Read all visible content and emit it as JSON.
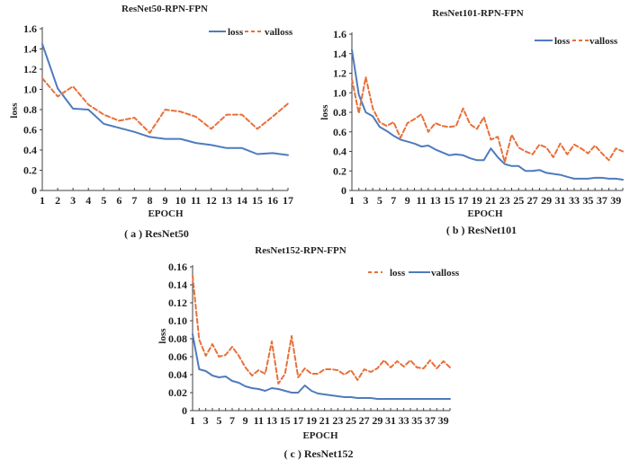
{
  "colors": {
    "blue": "#4f7bbd",
    "orange": "#e8703a",
    "text": "#231f20"
  },
  "chart_data": [
    {
      "id": "a",
      "type": "line",
      "title": "ResNet50-RPN-FPN",
      "caption": "( a ) ResNet50",
      "xlabel": "EPOCH",
      "ylabel": "loss",
      "xlim": [
        1,
        17
      ],
      "ylim": [
        0,
        1.6
      ],
      "yticks": [
        0,
        0.2,
        0.4,
        0.6,
        0.8,
        1.0,
        1.2,
        1.4,
        1.6
      ],
      "ytick_labels": [
        "0",
        "0.2",
        "0.4",
        "0.6",
        "0.8",
        "1.0",
        "1.2",
        "1.4",
        "1.6"
      ],
      "xticks": [
        1,
        2,
        3,
        4,
        5,
        6,
        7,
        8,
        9,
        10,
        11,
        12,
        13,
        14,
        15,
        16,
        17
      ],
      "xtick_labels": [
        "1",
        "2",
        "3",
        "4",
        "5",
        "6",
        "7",
        "8",
        "9",
        "10",
        "11",
        "12",
        "13",
        "14",
        "15",
        "16",
        "17"
      ],
      "legend_position": "top-right",
      "x": [
        1,
        2,
        3,
        4,
        5,
        6,
        7,
        8,
        9,
        10,
        11,
        12,
        13,
        14,
        15,
        16,
        17
      ],
      "series": [
        {
          "name": "loss",
          "style": "solid",
          "color": "#4f7bbd",
          "values": [
            1.45,
            1.01,
            0.81,
            0.8,
            0.66,
            0.62,
            0.58,
            0.53,
            0.51,
            0.51,
            0.47,
            0.45,
            0.42,
            0.42,
            0.36,
            0.37,
            0.35
          ]
        },
        {
          "name": "valloss",
          "style": "dashed",
          "color": "#e8703a",
          "values": [
            1.11,
            0.93,
            1.03,
            0.85,
            0.75,
            0.69,
            0.72,
            0.57,
            0.8,
            0.78,
            0.73,
            0.61,
            0.75,
            0.75,
            0.61,
            0.73,
            0.86
          ]
        }
      ]
    },
    {
      "id": "b",
      "type": "line",
      "title": "ResNet101-RPN-FPN",
      "caption": "( b ) ResNet101",
      "xlabel": "EPOCH",
      "ylabel": "loss",
      "xlim": [
        1,
        40
      ],
      "ylim": [
        0,
        1.6
      ],
      "yticks": [
        0,
        0.2,
        0.4,
        0.6,
        0.8,
        1.0,
        1.2,
        1.4,
        1.6
      ],
      "ytick_labels": [
        "0",
        "0.2",
        "0.4",
        "0.6",
        "0.8",
        "1.0",
        "1.2",
        "1.4",
        "1.6"
      ],
      "xticks": [
        1,
        3,
        5,
        7,
        9,
        11,
        13,
        15,
        17,
        19,
        21,
        23,
        25,
        27,
        29,
        31,
        33,
        35,
        37,
        39
      ],
      "xtick_labels": [
        "1",
        "3",
        "5",
        "7",
        "9",
        "11",
        "13",
        "15",
        "17",
        "19",
        "21",
        "23",
        "25",
        "27",
        "29",
        "31",
        "33",
        "35",
        "37",
        "39"
      ],
      "legend_position": "top-right",
      "x": [
        1,
        2,
        3,
        4,
        5,
        6,
        7,
        8,
        9,
        10,
        11,
        12,
        13,
        14,
        15,
        16,
        17,
        18,
        19,
        20,
        21,
        22,
        23,
        24,
        25,
        26,
        27,
        28,
        29,
        30,
        31,
        32,
        33,
        34,
        35,
        36,
        37,
        38,
        39,
        40
      ],
      "series": [
        {
          "name": "loss",
          "style": "solid",
          "color": "#4f7bbd",
          "values": [
            1.44,
            0.98,
            0.8,
            0.76,
            0.65,
            0.61,
            0.56,
            0.52,
            0.5,
            0.48,
            0.45,
            0.46,
            0.42,
            0.39,
            0.36,
            0.37,
            0.36,
            0.33,
            0.31,
            0.31,
            0.43,
            0.34,
            0.27,
            0.25,
            0.25,
            0.2,
            0.2,
            0.21,
            0.18,
            0.17,
            0.16,
            0.14,
            0.12,
            0.12,
            0.12,
            0.13,
            0.13,
            0.12,
            0.12,
            0.11
          ]
        },
        {
          "name": "valloss",
          "style": "dashed",
          "color": "#e8703a",
          "values": [
            1.14,
            0.79,
            1.16,
            0.84,
            0.7,
            0.66,
            0.7,
            0.54,
            0.69,
            0.73,
            0.78,
            0.6,
            0.69,
            0.66,
            0.65,
            0.66,
            0.84,
            0.68,
            0.63,
            0.75,
            0.52,
            0.55,
            0.29,
            0.57,
            0.44,
            0.4,
            0.37,
            0.47,
            0.44,
            0.34,
            0.48,
            0.37,
            0.47,
            0.43,
            0.38,
            0.46,
            0.38,
            0.31,
            0.43,
            0.4
          ]
        }
      ]
    },
    {
      "id": "c",
      "type": "line",
      "title": "ResNet152-RPN-FPN",
      "caption": "( c ) ResNet152",
      "xlabel": "EPOCH",
      "ylabel": "loss",
      "xlim": [
        1,
        40
      ],
      "ylim": [
        0,
        0.16
      ],
      "yticks": [
        0,
        0.02,
        0.04,
        0.06,
        0.08,
        0.1,
        0.12,
        0.14,
        0.16
      ],
      "ytick_labels": [
        "0",
        "0.02",
        "0.04",
        "0.06",
        "0.08",
        "0.10",
        "0.12",
        "0.14",
        "0.16"
      ],
      "xticks": [
        1,
        3,
        5,
        7,
        9,
        11,
        13,
        15,
        17,
        19,
        21,
        23,
        25,
        27,
        29,
        31,
        33,
        35,
        37,
        39
      ],
      "xtick_labels": [
        "1",
        "3",
        "5",
        "7",
        "9",
        "11",
        "13",
        "15",
        "17",
        "19",
        "21",
        "23",
        "25",
        "27",
        "29",
        "31",
        "33",
        "35",
        "37",
        "39"
      ],
      "legend_position": "top-right",
      "legend_order": [
        "loss",
        "valloss"
      ],
      "x": [
        1,
        2,
        3,
        4,
        5,
        6,
        7,
        8,
        9,
        10,
        11,
        12,
        13,
        14,
        15,
        16,
        17,
        18,
        19,
        20,
        21,
        22,
        23,
        24,
        25,
        26,
        27,
        28,
        29,
        30,
        31,
        32,
        33,
        34,
        35,
        36,
        37,
        38,
        39,
        40
      ],
      "series": [
        {
          "name": "loss",
          "style": "dashed",
          "color": "#e8703a",
          "values": [
            0.15,
            0.079,
            0.061,
            0.074,
            0.06,
            0.062,
            0.071,
            0.061,
            0.048,
            0.039,
            0.045,
            0.041,
            0.077,
            0.03,
            0.041,
            0.083,
            0.037,
            0.047,
            0.041,
            0.041,
            0.046,
            0.046,
            0.045,
            0.04,
            0.045,
            0.034,
            0.046,
            0.043,
            0.047,
            0.056,
            0.048,
            0.055,
            0.049,
            0.056,
            0.048,
            0.047,
            0.056,
            0.047,
            0.055,
            0.048
          ]
        },
        {
          "name": "valloss",
          "style": "solid",
          "color": "#4f7bbd",
          "values": [
            0.085,
            0.046,
            0.044,
            0.039,
            0.037,
            0.038,
            0.033,
            0.031,
            0.027,
            0.025,
            0.024,
            0.022,
            0.025,
            0.024,
            0.022,
            0.02,
            0.02,
            0.028,
            0.022,
            0.019,
            0.018,
            0.017,
            0.016,
            0.015,
            0.015,
            0.014,
            0.014,
            0.014,
            0.013,
            0.013,
            0.013,
            0.013,
            0.013,
            0.013,
            0.013,
            0.013,
            0.013,
            0.013,
            0.013,
            0.013
          ]
        }
      ]
    }
  ]
}
